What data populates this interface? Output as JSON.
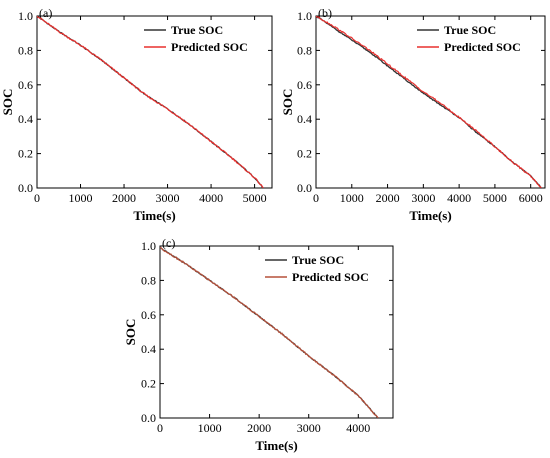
{
  "colors": {
    "true": "#333333",
    "predicted": "#e8312f",
    "predicted_c": "#b5503a"
  },
  "chart_data": [
    {
      "type": "line",
      "panel_label": "(a)",
      "xlabel": "Time(s)",
      "ylabel": "SOC",
      "xlim": [
        0,
        5400
      ],
      "ylim": [
        0,
        1.0
      ],
      "xticks": [
        0,
        1000,
        2000,
        3000,
        4000,
        5000
      ],
      "xtick_labels": [
        "0",
        "1000",
        "2000",
        "3000",
        "4000",
        "5000"
      ],
      "yticks": [
        0,
        0.2,
        0.4,
        0.6,
        0.8,
        1.0
      ],
      "ytick_labels": [
        "0.0",
        "0.2",
        "0.4",
        "0.6",
        "0.8",
        "1.0"
      ],
      "legend_position": "top-right",
      "grid": false,
      "series": [
        {
          "name": "True SOC",
          "x": [
            0,
            500,
            1000,
            1500,
            2000,
            2500,
            3000,
            3500,
            4000,
            4500,
            5000,
            5200
          ],
          "y": [
            1.0,
            0.91,
            0.83,
            0.74,
            0.64,
            0.54,
            0.46,
            0.37,
            0.27,
            0.17,
            0.06,
            0.0
          ]
        },
        {
          "name": "Predicted SOC",
          "x": [
            0,
            500,
            1000,
            1500,
            2000,
            2500,
            3000,
            3500,
            4000,
            4500,
            5000,
            5200
          ],
          "y": [
            1.0,
            0.91,
            0.83,
            0.74,
            0.64,
            0.54,
            0.46,
            0.37,
            0.27,
            0.17,
            0.06,
            0.0
          ]
        }
      ]
    },
    {
      "type": "line",
      "panel_label": "(b)",
      "xlabel": "Time(s)",
      "ylabel": "SOC",
      "xlim": [
        0,
        6400
      ],
      "ylim": [
        0,
        1.0
      ],
      "xticks": [
        0,
        1000,
        2000,
        3000,
        4000,
        5000,
        6000
      ],
      "xtick_labels": [
        "0",
        "1000",
        "2000",
        "3000",
        "4000",
        "5000",
        "6000"
      ],
      "yticks": [
        0,
        0.2,
        0.4,
        0.6,
        0.8,
        1.0
      ],
      "ytick_labels": [
        "0.0",
        "0.2",
        "0.4",
        "0.6",
        "0.8",
        "1.0"
      ],
      "legend_position": "top-right",
      "grid": false,
      "series": [
        {
          "name": "True SOC",
          "x": [
            0,
            500,
            1000,
            1500,
            2000,
            2500,
            3000,
            3500,
            4000,
            4500,
            5000,
            5500,
            6000,
            6300
          ],
          "y": [
            1.0,
            0.93,
            0.86,
            0.79,
            0.71,
            0.63,
            0.55,
            0.48,
            0.41,
            0.32,
            0.24,
            0.15,
            0.07,
            0.0
          ]
        },
        {
          "name": "Predicted SOC",
          "x": [
            0,
            500,
            1000,
            1500,
            2000,
            2500,
            3000,
            3500,
            4000,
            4500,
            5000,
            5500,
            6000,
            6300
          ],
          "y": [
            1.0,
            0.94,
            0.87,
            0.8,
            0.72,
            0.64,
            0.56,
            0.49,
            0.41,
            0.33,
            0.24,
            0.15,
            0.07,
            0.0
          ]
        }
      ]
    },
    {
      "type": "line",
      "panel_label": "(c)",
      "xlabel": "Time(s)",
      "ylabel": "SOC",
      "xlim": [
        0,
        4700
      ],
      "ylim": [
        0,
        1.0
      ],
      "xticks": [
        0,
        1000,
        2000,
        3000,
        4000
      ],
      "xtick_labels": [
        "0",
        "1000",
        "2000",
        "3000",
        "4000"
      ],
      "yticks": [
        0,
        0.2,
        0.4,
        0.6,
        0.8,
        1.0
      ],
      "ytick_labels": [
        "0.0",
        "0.2",
        "0.4",
        "0.6",
        "0.8",
        "1.0"
      ],
      "legend_position": "top-right",
      "grid": false,
      "series": [
        {
          "name": "True SOC",
          "x": [
            0,
            500,
            1000,
            1500,
            2000,
            2500,
            3000,
            3500,
            4000,
            4400
          ],
          "y": [
            0.99,
            0.9,
            0.8,
            0.7,
            0.59,
            0.48,
            0.36,
            0.25,
            0.13,
            0.0
          ]
        },
        {
          "name": "Predicted SOC",
          "x": [
            0,
            500,
            1000,
            1500,
            2000,
            2500,
            3000,
            3500,
            4000,
            4400
          ],
          "y": [
            0.99,
            0.9,
            0.8,
            0.7,
            0.59,
            0.48,
            0.36,
            0.25,
            0.13,
            0.0
          ]
        }
      ]
    }
  ]
}
